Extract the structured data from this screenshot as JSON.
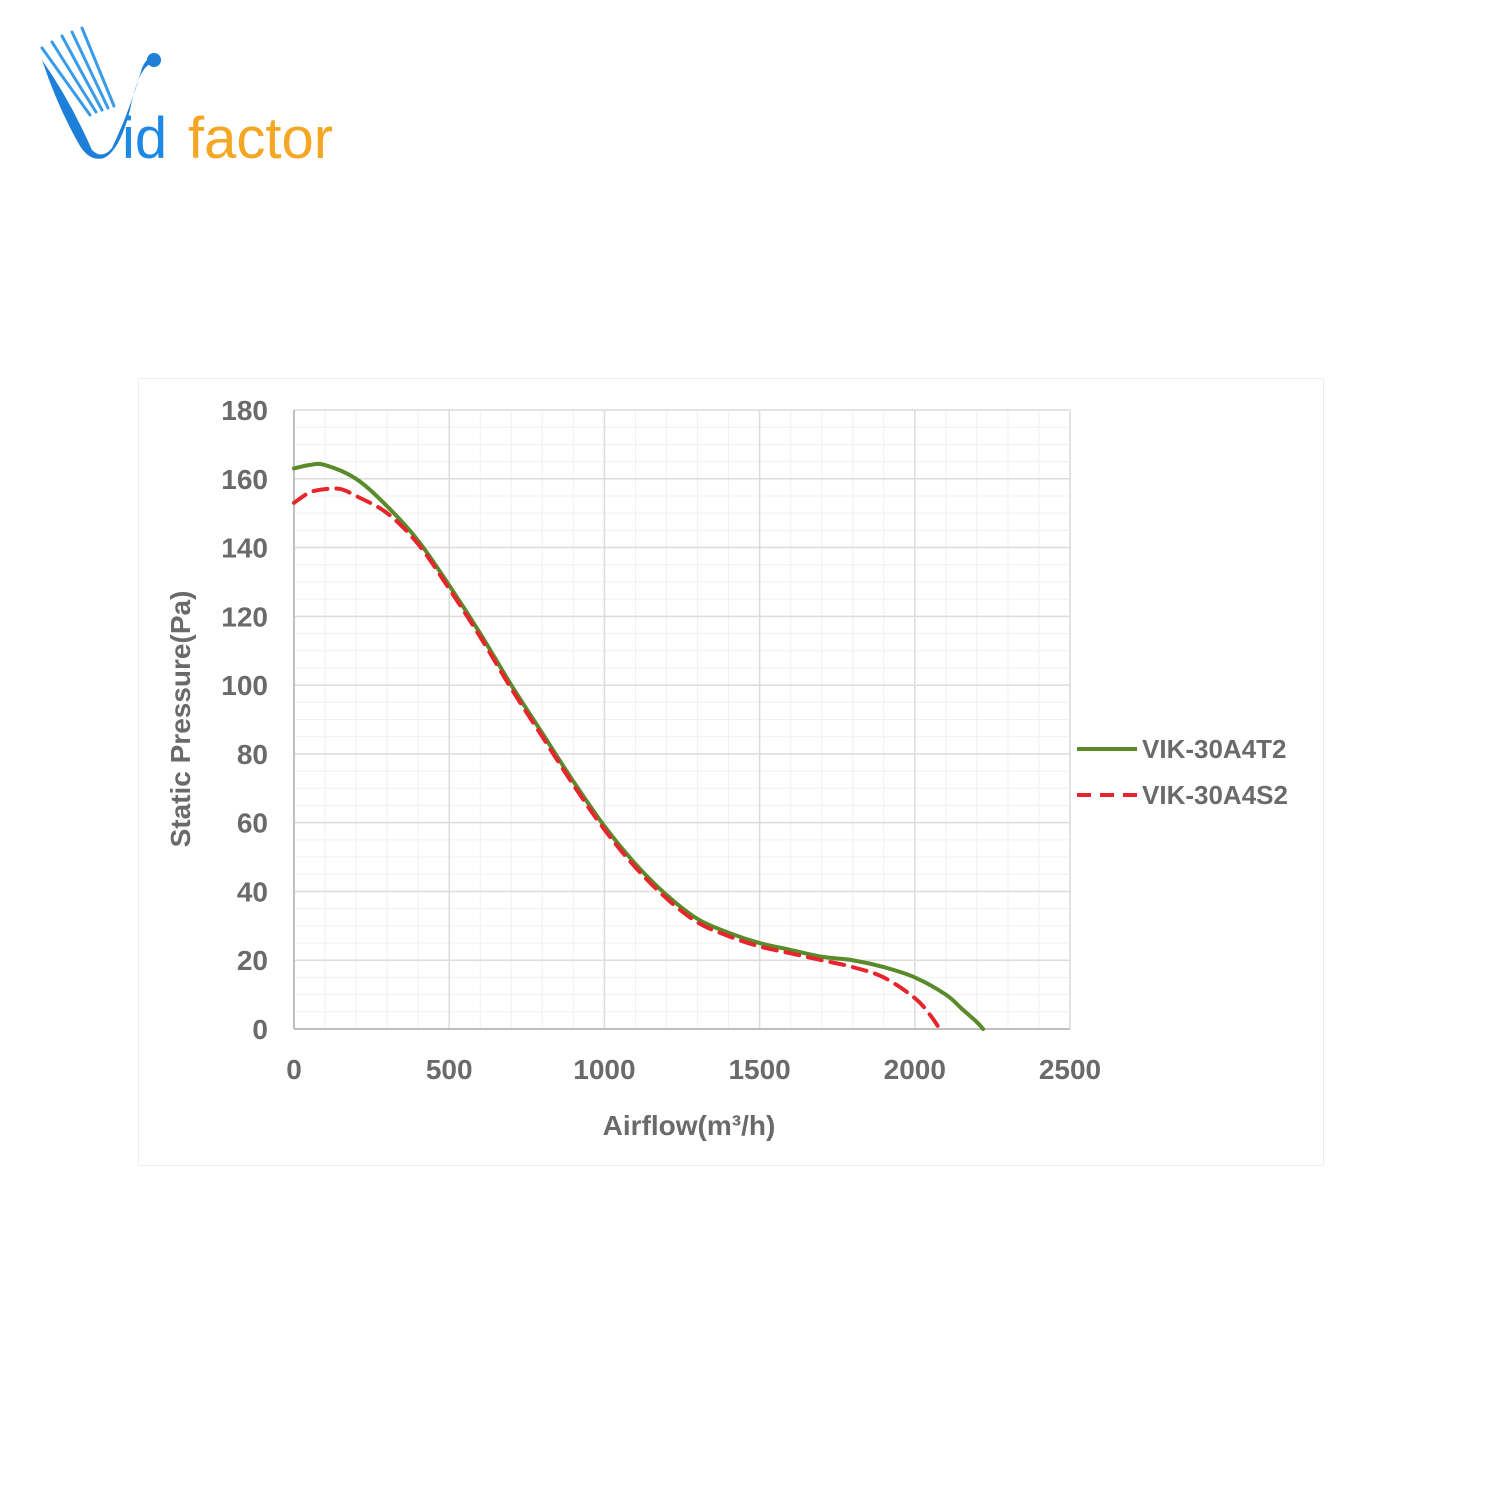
{
  "brand": {
    "logo_text_prefix": "V",
    "logo_text_main": "id",
    "logo_text_accent": "factor",
    "colors": {
      "blue": "#1e88e5",
      "orange": "#f5a623"
    }
  },
  "chart_data": {
    "type": "line",
    "xlabel": "Airflow(m³/h)",
    "ylabel": "Static Pressure(Pa)",
    "xlim": [
      0,
      2500
    ],
    "ylim": [
      0,
      180
    ],
    "xticks": [
      0,
      500,
      1000,
      1500,
      2000,
      2500
    ],
    "yticks": [
      0,
      20,
      40,
      60,
      80,
      100,
      120,
      140,
      160,
      180
    ],
    "grid": true,
    "legend_position": "right",
    "series": [
      {
        "name": "VIK-30A4T2",
        "style": "solid",
        "color": "#5a8a2a",
        "x": [
          0,
          50,
          100,
          200,
          300,
          400,
          500,
          600,
          700,
          800,
          900,
          1000,
          1100,
          1200,
          1300,
          1400,
          1500,
          1600,
          1700,
          1800,
          1900,
          2000,
          2100,
          2150,
          2200,
          2220
        ],
        "y": [
          163,
          164,
          164,
          160,
          152,
          142,
          129,
          115,
          100,
          86,
          72,
          59,
          48,
          39,
          32,
          28,
          25,
          23,
          21,
          20,
          18,
          15,
          10,
          6,
          2,
          0
        ]
      },
      {
        "name": "VIK-30A4S2",
        "style": "dashed",
        "color": "#e8242c",
        "x": [
          0,
          50,
          100,
          150,
          200,
          300,
          400,
          500,
          600,
          700,
          800,
          900,
          1000,
          1100,
          1200,
          1300,
          1400,
          1500,
          1600,
          1700,
          1800,
          1900,
          2000,
          2050,
          2080
        ],
        "y": [
          153,
          156,
          157,
          157,
          155,
          150,
          141,
          128,
          114,
          99,
          85,
          71,
          58,
          47,
          38,
          31,
          27,
          24,
          22,
          20,
          18,
          15,
          9,
          4,
          0
        ]
      }
    ]
  }
}
